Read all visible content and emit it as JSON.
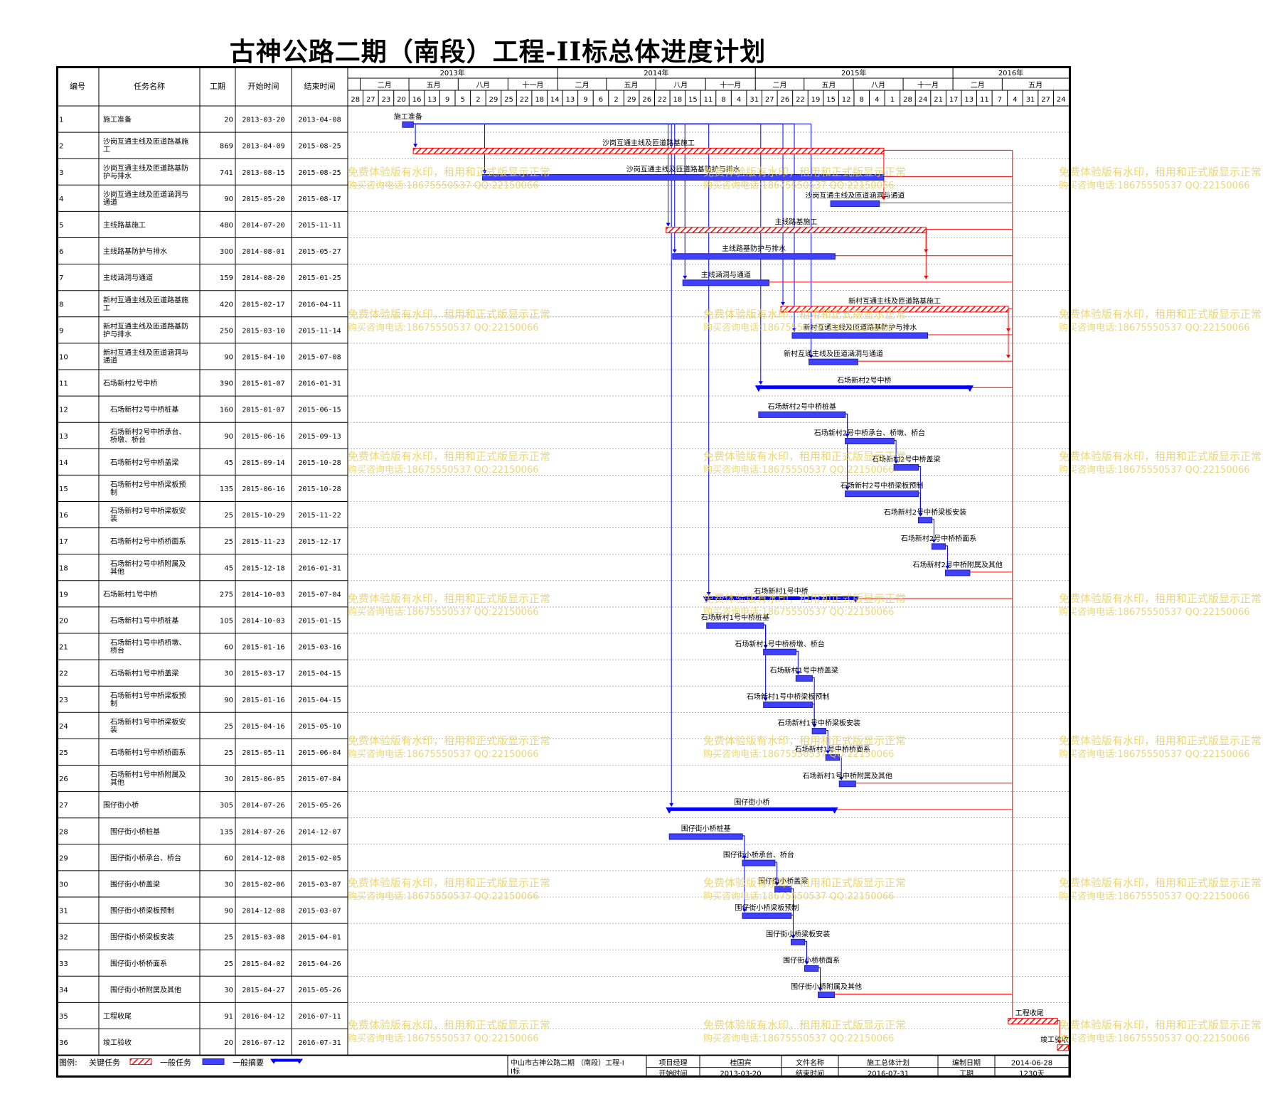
{
  "title": "古神公路二期（南段）工程-II标总体进度计划",
  "colors": {
    "critical": "#ff0000",
    "normal_bar": "#4040ff",
    "summary": "#0000ff",
    "link_normal": "#0000ff",
    "link_critical": "#ff0000",
    "watermark": "#e8d060"
  },
  "headers": {
    "id": "编号",
    "name": "任务名称",
    "dur": "工期",
    "start": "开始时间",
    "end": "结束时间"
  },
  "timeline": {
    "years": [
      {
        "label": "2013年",
        "start": "2012-12-09",
        "end": "2013-12-31"
      },
      {
        "label": "2014年",
        "start": "2014-01-01",
        "end": "2014-12-31"
      },
      {
        "label": "2015年",
        "start": "2015-01-01",
        "end": "2015-12-31"
      },
      {
        "label": "2016年",
        "start": "2016-01-01",
        "end": "2016-08-02"
      }
    ],
    "quarters": [
      {
        "label": "二月",
        "date": "2013-01-01"
      },
      {
        "label": "五月",
        "date": "2013-04-01"
      },
      {
        "label": "八月",
        "date": "2013-07-01"
      },
      {
        "label": "十一月",
        "date": "2013-10-01"
      },
      {
        "label": "二月",
        "date": "2014-01-01"
      },
      {
        "label": "五月",
        "date": "2014-04-01"
      },
      {
        "label": "八月",
        "date": "2014-07-01"
      },
      {
        "label": "十一月",
        "date": "2014-10-01"
      },
      {
        "label": "二月",
        "date": "2015-01-01"
      },
      {
        "label": "五月",
        "date": "2015-04-01"
      },
      {
        "label": "八月",
        "date": "2015-07-01"
      },
      {
        "label": "十一月",
        "date": "2015-10-01"
      },
      {
        "label": "二月",
        "date": "2016-01-01"
      },
      {
        "label": "五月",
        "date": "2016-04-01"
      }
    ],
    "days": [
      "28",
      "27",
      "23",
      "20",
      "16",
      "13",
      "9",
      "5",
      "2",
      "29",
      "25",
      "22",
      "18",
      "14",
      "13",
      "9",
      "6",
      "2",
      "29",
      "26",
      "22",
      "18",
      "15",
      "11",
      "8",
      "4",
      "31",
      "27",
      "26",
      "22",
      "19",
      "15",
      "12",
      "8",
      "4",
      "1",
      "28",
      "24",
      "21",
      "17",
      "13",
      "11",
      "7",
      "4",
      "31",
      "27",
      "24"
    ]
  },
  "tasks": [
    {
      "id": "1",
      "name": "施工准备",
      "dur": "20",
      "start": "2013-03-20",
      "end": "2013-04-08",
      "type": "normal",
      "label": "施工准备",
      "indent": 0
    },
    {
      "id": "2",
      "name": "沙岗互通主线及匝道路基施工",
      "dur": "869",
      "start": "2013-04-09",
      "end": "2015-08-25",
      "type": "critical",
      "label": "沙岗互通主线及匝道路基施工",
      "indent": 0
    },
    {
      "id": "3",
      "name": "沙岗互通主线及匝道路基防护与排水",
      "dur": "741",
      "start": "2013-08-15",
      "end": "2015-08-25",
      "type": "normal",
      "label": "沙岗互通主线及匝道路基防护与排水",
      "indent": 0
    },
    {
      "id": "4",
      "name": "沙岗互通主线及匝道涵洞与通道",
      "dur": "90",
      "start": "2015-05-20",
      "end": "2015-08-17",
      "type": "normal",
      "label": "沙岗互通主线及匝道涵洞与通道",
      "indent": 0
    },
    {
      "id": "5",
      "name": "主线路基施工",
      "dur": "480",
      "start": "2014-07-20",
      "end": "2015-11-11",
      "type": "critical",
      "label": "主线路基施工",
      "indent": 0
    },
    {
      "id": "6",
      "name": "主线路基防护与排水",
      "dur": "300",
      "start": "2014-08-01",
      "end": "2015-05-27",
      "type": "normal",
      "label": "主线路基防护与排水",
      "indent": 0
    },
    {
      "id": "7",
      "name": "主线涵洞与通道",
      "dur": "159",
      "start": "2014-08-20",
      "end": "2015-01-25",
      "type": "normal",
      "label": "主线涵洞与通道",
      "indent": 0
    },
    {
      "id": "8",
      "name": "新村互通主线及匝道路基施工",
      "dur": "420",
      "start": "2015-02-17",
      "end": "2016-04-11",
      "type": "critical",
      "label": "新村互通主线及匝道路基施工",
      "indent": 0
    },
    {
      "id": "9",
      "name": "新村互通主线及匝道路基防护与排水",
      "dur": "250",
      "start": "2015-03-10",
      "end": "2015-11-14",
      "type": "normal",
      "label": "新村互通主线及匝道路基防护与排水",
      "indent": 0
    },
    {
      "id": "10",
      "name": "新村互通主线及匝道涵洞与通道",
      "dur": "90",
      "start": "2015-04-10",
      "end": "2015-07-08",
      "type": "normal",
      "label": "新村互通主线及匝道涵洞与通道",
      "indent": 0
    },
    {
      "id": "11",
      "name": "石场新村2号中桥",
      "dur": "390",
      "start": "2015-01-07",
      "end": "2016-01-31",
      "type": "summary",
      "label": "石场新村2号中桥",
      "indent": 0
    },
    {
      "id": "12",
      "name": "石场新村2号中桥桩基",
      "dur": "160",
      "start": "2015-01-07",
      "end": "2015-06-15",
      "type": "normal",
      "label": "石场新村2号中桥桩基",
      "indent": 1
    },
    {
      "id": "13",
      "name": "石场新村2号中桥承台、桥墩、桥台",
      "dur": "90",
      "start": "2015-06-16",
      "end": "2015-09-13",
      "type": "normal",
      "label": "石场新村2号中桥承台、桥墩、桥台",
      "indent": 1
    },
    {
      "id": "14",
      "name": "石场新村2号中桥盖梁",
      "dur": "45",
      "start": "2015-09-14",
      "end": "2015-10-28",
      "type": "normal",
      "label": "石场新村2号中桥盖梁",
      "indent": 1
    },
    {
      "id": "15",
      "name": "石场新村2号中桥梁板预制",
      "dur": "135",
      "start": "2015-06-16",
      "end": "2015-10-28",
      "type": "normal",
      "label": "石场新村2号中桥梁板预制",
      "indent": 1
    },
    {
      "id": "16",
      "name": "石场新村2号中桥梁板安装",
      "dur": "25",
      "start": "2015-10-29",
      "end": "2015-11-22",
      "type": "normal",
      "label": "石场新村2号中桥梁板安装",
      "indent": 1
    },
    {
      "id": "17",
      "name": "石场新村2号中桥桥面系",
      "dur": "25",
      "start": "2015-11-23",
      "end": "2015-12-17",
      "type": "normal",
      "label": "石场新村2号中桥桥面系",
      "indent": 1
    },
    {
      "id": "18",
      "name": "石场新村2号中桥附属及其他",
      "dur": "45",
      "start": "2015-12-18",
      "end": "2016-01-31",
      "type": "normal",
      "label": "石场新村2号中桥附属及其他",
      "indent": 1
    },
    {
      "id": "19",
      "name": "石场新村1号中桥",
      "dur": "275",
      "start": "2014-10-03",
      "end": "2015-07-04",
      "type": "summary",
      "label": "石场新村1号中桥",
      "indent": 0
    },
    {
      "id": "20",
      "name": "石场新村1号中桥桩基",
      "dur": "105",
      "start": "2014-10-03",
      "end": "2015-01-15",
      "type": "normal",
      "label": "石场新村1号中桥桩基",
      "indent": 1
    },
    {
      "id": "21",
      "name": "石场新村1号中桥桥墩、桥台",
      "dur": "60",
      "start": "2015-01-16",
      "end": "2015-03-16",
      "type": "normal",
      "label": "石场新村1号中桥桥墩、桥台",
      "indent": 1
    },
    {
      "id": "22",
      "name": "石场新村1号中桥盖梁",
      "dur": "30",
      "start": "2015-03-17",
      "end": "2015-04-15",
      "type": "normal",
      "label": "石场新村1号中桥盖梁",
      "indent": 1
    },
    {
      "id": "23",
      "name": "石场新村1号中桥梁板预制",
      "dur": "90",
      "start": "2015-01-16",
      "end": "2015-04-15",
      "type": "normal",
      "label": "石场新村1号中桥梁板预制",
      "indent": 1
    },
    {
      "id": "24",
      "name": "石场新村1号中桥梁板安装",
      "dur": "25",
      "start": "2015-04-16",
      "end": "2015-05-10",
      "type": "normal",
      "label": "石场新村1号中桥梁板安装",
      "indent": 1
    },
    {
      "id": "25",
      "name": "石场新村1号中桥桥面系",
      "dur": "25",
      "start": "2015-05-11",
      "end": "2015-06-04",
      "type": "normal",
      "label": "石场新村1号中桥桥面系",
      "indent": 1
    },
    {
      "id": "26",
      "name": "石场新村1号中桥附属及其他",
      "dur": "30",
      "start": "2015-06-05",
      "end": "2015-07-04",
      "type": "normal",
      "label": "石场新村1号中桥附属及其他",
      "indent": 1
    },
    {
      "id": "27",
      "name": "围仔街小桥",
      "dur": "305",
      "start": "2014-07-26",
      "end": "2015-05-26",
      "type": "summary",
      "label": "围仔街小桥",
      "indent": 0
    },
    {
      "id": "28",
      "name": "围仔街小桥桩基",
      "dur": "135",
      "start": "2014-07-26",
      "end": "2014-12-07",
      "type": "normal",
      "label": "围仔街小桥桩基",
      "indent": 1
    },
    {
      "id": "29",
      "name": "围仔街小桥承台、桥台",
      "dur": "60",
      "start": "2014-12-08",
      "end": "2015-02-05",
      "type": "normal",
      "label": "围仔街小桥承台、桥台",
      "indent": 1
    },
    {
      "id": "30",
      "name": "围仔街小桥盖梁",
      "dur": "30",
      "start": "2015-02-06",
      "end": "2015-03-07",
      "type": "normal",
      "label": "围仔街小桥盖梁",
      "indent": 1
    },
    {
      "id": "31",
      "name": "围仔街小桥梁板预制",
      "dur": "90",
      "start": "2014-12-08",
      "end": "2015-03-07",
      "type": "normal",
      "label": "围仔街小桥梁板预制",
      "indent": 1
    },
    {
      "id": "32",
      "name": "围仔街小桥梁板安装",
      "dur": "25",
      "start": "2015-03-08",
      "end": "2015-04-01",
      "type": "normal",
      "label": "围仔街小桥梁板安装",
      "indent": 1
    },
    {
      "id": "33",
      "name": "围仔街小桥桥面系",
      "dur": "25",
      "start": "2015-04-02",
      "end": "2015-04-26",
      "type": "normal",
      "label": "围仔街小桥桥面系",
      "indent": 1
    },
    {
      "id": "34",
      "name": "围仔街小桥附属及其他",
      "dur": "30",
      "start": "2015-04-27",
      "end": "2015-05-26",
      "type": "normal",
      "label": "围仔街小桥附属及其他",
      "indent": 1
    },
    {
      "id": "35",
      "name": "工程收尾",
      "dur": "91",
      "start": "2016-04-12",
      "end": "2016-07-11",
      "type": "critical",
      "label": "工程收尾",
      "indent": 0
    },
    {
      "id": "36",
      "name": "竣工验收",
      "dur": "20",
      "start": "2016-07-12",
      "end": "2016-07-31",
      "type": "critical",
      "label": "竣工验收",
      "indent": 0
    }
  ],
  "legend": {
    "label": "图例:",
    "critical": "关键任务",
    "normal": "一般任务",
    "summary": "一般摘要"
  },
  "footer": {
    "project": "中山市古神公路二期 （南段）工程-II标",
    "manager_label": "项目经理",
    "manager": "桂国宾",
    "file_label": "文件名称",
    "file": "施工总体计划",
    "date_label": "编制日期",
    "date": "2014-06-28",
    "start_label": "开始时间",
    "start": "2013-03-20",
    "end_label": "结束时间",
    "end": "2016-07-31",
    "dur_label": "工期",
    "dur": "1230天"
  },
  "watermark": {
    "line1": "免费体验版有水印，租用和正式版显示正常",
    "line2": "购买咨询电话:18675550537 QQ:22150066"
  }
}
